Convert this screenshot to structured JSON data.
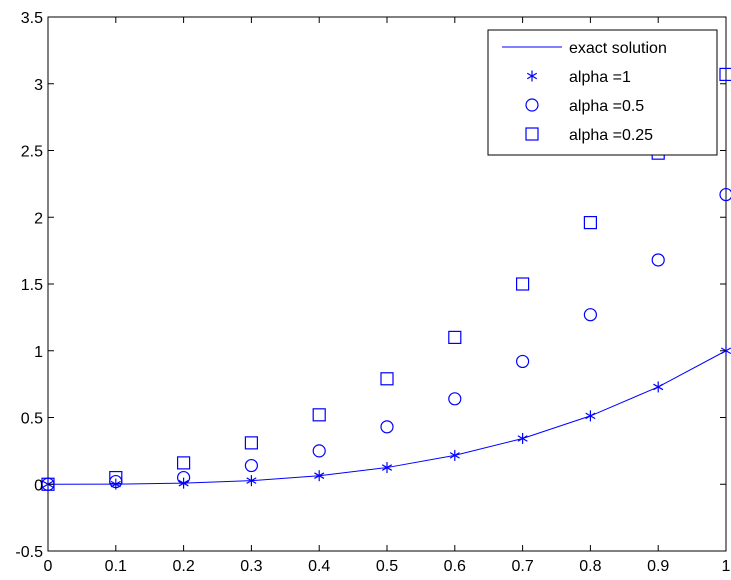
{
  "chart_data": {
    "type": "scatter",
    "title": "",
    "xlabel": "",
    "ylabel": "",
    "xlim": [
      0,
      1
    ],
    "ylim": [
      -0.5,
      3.5
    ],
    "xticks": [
      "0",
      "0.1",
      "0.2",
      "0.3",
      "0.4",
      "0.5",
      "0.6",
      "0.7",
      "0.8",
      "0.9",
      "1"
    ],
    "yticks": [
      "-0.5",
      "0",
      "0.5",
      "1",
      "1.5",
      "2",
      "2.5",
      "3",
      "3.5"
    ],
    "grid": false,
    "legend_position": "top-right",
    "x": [
      0,
      0.1,
      0.2,
      0.3,
      0.4,
      0.5,
      0.6,
      0.7,
      0.8,
      0.9,
      1.0
    ],
    "series": [
      {
        "name": "exact solution",
        "style": "line",
        "color": "#0000ff",
        "values": [
          0,
          0.001,
          0.008,
          0.027,
          0.064,
          0.125,
          0.216,
          0.343,
          0.512,
          0.729,
          1.0
        ]
      },
      {
        "name": " alpha =1",
        "style": "star",
        "color": "#0000ff",
        "values": [
          0,
          0.001,
          0.008,
          0.027,
          0.064,
          0.125,
          0.216,
          0.343,
          0.512,
          0.729,
          1.0
        ]
      },
      {
        "name": "alpha =0.5",
        "style": "circle",
        "color": "#0000ff",
        "values": [
          0,
          0.02,
          0.05,
          0.14,
          0.25,
          0.43,
          0.64,
          0.92,
          1.27,
          1.68,
          2.17
        ]
      },
      {
        "name": "alpha =0.25",
        "style": "square",
        "color": "#0000ff",
        "values": [
          0,
          0.05,
          0.16,
          0.31,
          0.52,
          0.79,
          1.1,
          1.5,
          1.96,
          2.48,
          3.07
        ]
      }
    ]
  }
}
